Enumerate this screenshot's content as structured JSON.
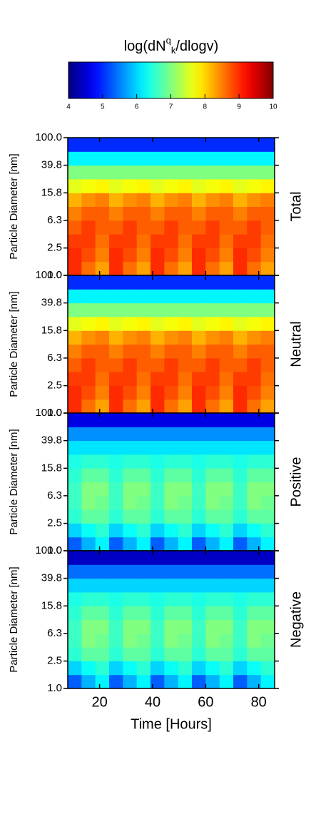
{
  "chart_data": {
    "type": "heatmap",
    "colorbar": {
      "label": [
        "log(dN",
        "q",
        "k",
        "/dlogv)"
      ],
      "clim": [
        4,
        10
      ],
      "ticks": [
        4,
        5,
        6,
        7,
        8,
        9,
        10
      ],
      "colormap": "jet"
    },
    "x_label": "Time [Hours]",
    "y_label": "Particle Diameter [nm]",
    "xlim": [
      8,
      86
    ],
    "xticks": [
      20,
      40,
      60,
      80
    ],
    "ylim": [
      1,
      100
    ],
    "log_y": true,
    "yticks": [
      {
        "value": 1,
        "label": "1.0"
      },
      2.5,
      6.3,
      15.8,
      39.8,
      {
        "value": 100,
        "label": "100.0"
      }
    ],
    "x": [
      8,
      13.2,
      18.4,
      23.6,
      28.8,
      34,
      39.2,
      44.4,
      49.6,
      54.8,
      60,
      65.2,
      70.4,
      75.6,
      80.8,
      86
    ],
    "y": [
      1,
      1.585,
      2.512,
      3.981,
      6.31,
      10,
      15.85,
      25.12,
      39.81,
      63.1,
      100
    ],
    "panels": [
      {
        "name": "Total",
        "values": [
          [
            9.0,
            8.6,
            8.3,
            9.0,
            8.6,
            8.3,
            9.0,
            8.6,
            8.3,
            9.0,
            8.6,
            8.3,
            9.0,
            8.6,
            8.3
          ],
          [
            9.0,
            8.8,
            8.5,
            9.0,
            8.8,
            8.5,
            9.0,
            8.8,
            8.5,
            9.0,
            8.8,
            8.5,
            9.0,
            8.8,
            8.5
          ],
          [
            8.9,
            8.9,
            8.6,
            8.9,
            8.9,
            8.6,
            8.9,
            8.9,
            8.6,
            8.9,
            8.9,
            8.6,
            8.9,
            8.9,
            8.6
          ],
          [
            8.7,
            8.9,
            8.7,
            8.7,
            8.9,
            8.7,
            8.7,
            8.9,
            8.7,
            8.7,
            8.9,
            8.7,
            8.7,
            8.9,
            8.7
          ],
          [
            8.5,
            8.7,
            8.7,
            8.5,
            8.7,
            8.7,
            8.5,
            8.7,
            8.7,
            8.5,
            8.7,
            8.7,
            8.5,
            8.7,
            8.7
          ],
          [
            8.2,
            8.4,
            8.5,
            8.2,
            8.4,
            8.5,
            8.2,
            8.4,
            8.5,
            8.2,
            8.4,
            8.5,
            8.2,
            8.4,
            8.5
          ],
          [
            7.6,
            7.7,
            7.8,
            7.6,
            7.7,
            7.8,
            7.6,
            7.7,
            7.8,
            7.6,
            7.7,
            7.8,
            7.6,
            7.7,
            7.8
          ],
          [
            7.0,
            7.0,
            7.0,
            7.0,
            7.0,
            7.0,
            7.0,
            7.0,
            7.0,
            7.0,
            7.0,
            7.0,
            7.0,
            7.0,
            7.0
          ],
          [
            6.2,
            6.2,
            6.2,
            6.2,
            6.2,
            6.2,
            6.2,
            6.2,
            6.2,
            6.2,
            6.2,
            6.2,
            6.2,
            6.2,
            6.2
          ],
          [
            5.0,
            5.0,
            5.0,
            5.0,
            5.0,
            5.0,
            5.0,
            5.0,
            5.0,
            5.0,
            5.0,
            5.0,
            5.0,
            5.0,
            5.0
          ]
        ]
      },
      {
        "name": "Neutral",
        "values": [
          [
            9.0,
            8.6,
            8.3,
            9.0,
            8.6,
            8.3,
            9.0,
            8.6,
            8.3,
            9.0,
            8.6,
            8.3,
            9.0,
            8.6,
            8.3
          ],
          [
            9.0,
            8.8,
            8.5,
            9.0,
            8.8,
            8.5,
            9.0,
            8.8,
            8.5,
            9.0,
            8.8,
            8.5,
            9.0,
            8.8,
            8.5
          ],
          [
            8.9,
            8.9,
            8.6,
            8.9,
            8.9,
            8.6,
            8.9,
            8.9,
            8.6,
            8.9,
            8.9,
            8.6,
            8.9,
            8.9,
            8.6
          ],
          [
            8.7,
            8.9,
            8.7,
            8.7,
            8.9,
            8.7,
            8.7,
            8.9,
            8.7,
            8.7,
            8.9,
            8.7,
            8.7,
            8.9,
            8.7
          ],
          [
            8.5,
            8.7,
            8.7,
            8.5,
            8.7,
            8.7,
            8.5,
            8.7,
            8.7,
            8.5,
            8.7,
            8.7,
            8.5,
            8.7,
            8.7
          ],
          [
            8.2,
            8.4,
            8.5,
            8.2,
            8.4,
            8.5,
            8.2,
            8.4,
            8.5,
            8.2,
            8.4,
            8.5,
            8.2,
            8.4,
            8.5
          ],
          [
            7.6,
            7.7,
            7.8,
            7.6,
            7.7,
            7.8,
            7.6,
            7.7,
            7.8,
            7.6,
            7.7,
            7.8,
            7.6,
            7.7,
            7.8
          ],
          [
            7.0,
            7.0,
            7.0,
            7.0,
            7.0,
            7.0,
            7.0,
            7.0,
            7.0,
            7.0,
            7.0,
            7.0,
            7.0,
            7.0,
            7.0
          ],
          [
            6.2,
            6.2,
            6.2,
            6.2,
            6.2,
            6.2,
            6.2,
            6.2,
            6.2,
            6.2,
            6.2,
            6.2,
            6.2,
            6.2,
            6.2
          ],
          [
            5.0,
            5.0,
            5.0,
            5.0,
            5.0,
            5.0,
            5.0,
            5.0,
            5.0,
            5.0,
            5.0,
            5.0,
            5.0,
            5.0,
            5.0
          ]
        ]
      },
      {
        "name": "Positive",
        "values": [
          [
            5.3,
            5.8,
            6.2,
            5.3,
            5.8,
            6.2,
            5.3,
            5.8,
            6.2,
            5.3,
            5.8,
            6.2,
            5.3,
            5.8,
            6.2
          ],
          [
            6.0,
            6.3,
            6.5,
            6.0,
            6.3,
            6.5,
            6.0,
            6.3,
            6.5,
            6.0,
            6.3,
            6.5,
            6.0,
            6.3,
            6.5
          ],
          [
            6.5,
            6.8,
            6.8,
            6.5,
            6.8,
            6.8,
            6.5,
            6.8,
            6.8,
            6.5,
            6.8,
            6.8,
            6.5,
            6.8,
            6.8
          ],
          [
            6.6,
            7.0,
            6.9,
            6.6,
            7.0,
            6.9,
            6.6,
            7.0,
            6.9,
            6.6,
            7.0,
            6.9,
            6.6,
            7.0,
            6.9
          ],
          [
            6.6,
            7.0,
            7.0,
            6.6,
            7.0,
            7.0,
            6.6,
            7.0,
            7.0,
            6.6,
            7.0,
            7.0,
            6.6,
            7.0,
            7.0
          ],
          [
            6.5,
            6.8,
            6.8,
            6.5,
            6.8,
            6.8,
            6.5,
            6.8,
            6.8,
            6.5,
            6.8,
            6.8,
            6.5,
            6.8,
            6.8
          ],
          [
            6.4,
            6.5,
            6.5,
            6.4,
            6.5,
            6.5,
            6.4,
            6.5,
            6.5,
            6.4,
            6.5,
            6.5,
            6.4,
            6.5,
            6.5
          ],
          [
            6.1,
            6.1,
            6.1,
            6.1,
            6.1,
            6.1,
            6.1,
            6.1,
            6.1,
            6.1,
            6.1,
            6.1,
            6.1,
            6.1,
            6.1
          ],
          [
            5.6,
            5.6,
            5.6,
            5.6,
            5.6,
            5.6,
            5.6,
            5.6,
            5.6,
            5.6,
            5.6,
            5.6,
            5.6,
            5.6,
            5.6
          ],
          [
            4.6,
            4.6,
            4.6,
            4.6,
            4.6,
            4.6,
            4.6,
            4.6,
            4.6,
            4.6,
            4.6,
            4.6,
            4.6,
            4.6,
            4.6
          ]
        ]
      },
      {
        "name": "Negative",
        "values": [
          [
            5.3,
            5.8,
            6.2,
            5.3,
            5.8,
            6.2,
            5.3,
            5.8,
            6.2,
            5.3,
            5.8,
            6.2,
            5.3,
            5.8,
            6.2
          ],
          [
            6.0,
            6.3,
            6.5,
            6.0,
            6.3,
            6.5,
            6.0,
            6.3,
            6.5,
            6.0,
            6.3,
            6.5,
            6.0,
            6.3,
            6.5
          ],
          [
            6.5,
            6.8,
            6.8,
            6.5,
            6.8,
            6.8,
            6.5,
            6.8,
            6.8,
            6.5,
            6.8,
            6.8,
            6.5,
            6.8,
            6.8
          ],
          [
            6.6,
            7.0,
            6.9,
            6.6,
            7.0,
            6.9,
            6.6,
            7.0,
            6.9,
            6.6,
            7.0,
            6.9,
            6.6,
            7.0,
            6.9
          ],
          [
            6.6,
            7.0,
            7.0,
            6.6,
            7.0,
            7.0,
            6.6,
            7.0,
            7.0,
            6.6,
            7.0,
            7.0,
            6.6,
            7.0,
            7.0
          ],
          [
            6.5,
            6.8,
            6.8,
            6.5,
            6.8,
            6.8,
            6.5,
            6.8,
            6.8,
            6.5,
            6.8,
            6.8,
            6.5,
            6.8,
            6.8
          ],
          [
            6.4,
            6.5,
            6.5,
            6.4,
            6.5,
            6.5,
            6.4,
            6.5,
            6.5,
            6.4,
            6.5,
            6.5,
            6.4,
            6.5,
            6.5
          ],
          [
            6.0,
            6.0,
            6.0,
            6.0,
            6.0,
            6.0,
            6.0,
            6.0,
            6.0,
            6.0,
            6.0,
            6.0,
            6.0,
            6.0,
            6.0
          ],
          [
            5.4,
            5.4,
            5.4,
            5.4,
            5.4,
            5.4,
            5.4,
            5.4,
            5.4,
            5.4,
            5.4,
            5.4,
            5.4,
            5.4,
            5.4
          ],
          [
            4.4,
            4.4,
            4.4,
            4.4,
            4.4,
            4.4,
            4.4,
            4.4,
            4.4,
            4.4,
            4.4,
            4.4,
            4.4,
            4.4,
            4.4
          ]
        ]
      }
    ]
  }
}
